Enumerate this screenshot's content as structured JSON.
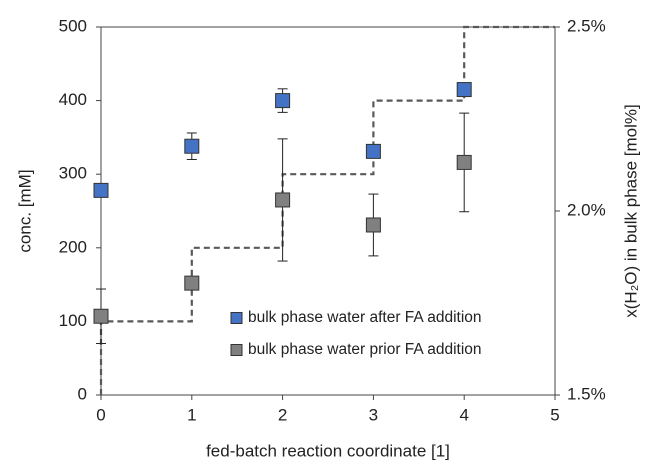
{
  "chart_data": {
    "type": "scatter",
    "xlabel": "fed-batch reaction coordinate [1]",
    "ylabel": "conc. [mM]",
    "y2label": "x(H₂O) in bulk phase [mol%]",
    "xlim": [
      0,
      5
    ],
    "xticks": [
      0,
      1,
      2,
      3,
      4,
      5
    ],
    "ylim": [
      0,
      500
    ],
    "yticks": [
      0,
      100,
      200,
      300,
      400,
      500
    ],
    "y2lim": [
      1.5,
      2.5
    ],
    "y2ticks": [
      {
        "value": 1.5,
        "label": "1.5%"
      },
      {
        "value": 2.0,
        "label": "2.0%"
      },
      {
        "value": 2.5,
        "label": "2.5%"
      }
    ],
    "legend": "lower right",
    "series": [
      {
        "name": "bulk phase water after FA addition",
        "color": "#4472c4",
        "x": [
          0,
          1,
          2,
          3,
          4
        ],
        "values": [
          278,
          338,
          400,
          331,
          415
        ],
        "errors": [
          null,
          18,
          16,
          null,
          null
        ]
      },
      {
        "name": "bulk phase water prior FA addition",
        "color": "#808080",
        "x": [
          0,
          1,
          2,
          3,
          4
        ],
        "values": [
          107,
          152,
          265,
          231,
          316
        ],
        "errors": [
          37,
          null,
          83,
          42,
          67
        ]
      },
      {
        "type": "line",
        "axis": "y2",
        "color": "#595959",
        "x": [
          0,
          0,
          1,
          1,
          2,
          2,
          3,
          3,
          4,
          4,
          5
        ],
        "values": [
          1.5,
          1.7,
          1.7,
          1.9,
          1.9,
          2.1,
          2.1,
          2.3,
          2.3,
          2.5,
          2.5
        ]
      }
    ]
  }
}
